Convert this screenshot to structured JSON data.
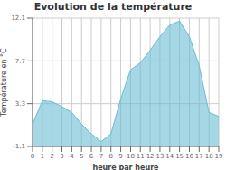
{
  "chart_data": {
    "type": "area",
    "title": "Evolution de la température",
    "xlabel": "heure par heure",
    "ylabel": "Température en °C",
    "x": [
      0,
      1,
      2,
      3,
      4,
      5,
      6,
      7,
      8,
      9,
      10,
      11,
      12,
      13,
      14,
      15,
      16,
      17,
      18,
      19
    ],
    "values": [
      1.2,
      3.6,
      3.5,
      3.0,
      2.4,
      1.2,
      0.2,
      -0.6,
      0.2,
      3.8,
      6.8,
      7.5,
      8.8,
      10.2,
      11.4,
      11.8,
      10.2,
      7.2,
      2.4,
      2.0
    ],
    "color": "#6bbdd4",
    "xlim": [
      0,
      19
    ],
    "ylim": [
      -1.1,
      12.1
    ],
    "xticks": [
      0,
      1,
      2,
      3,
      4,
      5,
      6,
      7,
      8,
      9,
      10,
      11,
      12,
      13,
      14,
      15,
      16,
      17,
      18,
      19
    ],
    "yticks": [
      -1.1,
      3.3,
      7.7,
      12.1
    ],
    "grid": true
  }
}
